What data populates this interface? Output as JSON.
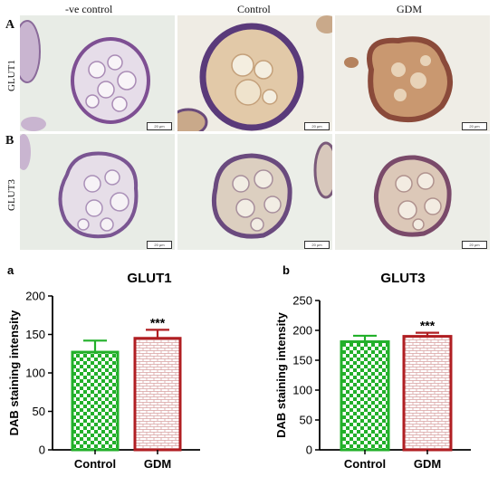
{
  "figure": {
    "column_labels": [
      "-ve control",
      "Control",
      "GDM"
    ],
    "rows": [
      {
        "letter": "A",
        "label": "GLUT1"
      },
      {
        "letter": "B",
        "label": "GLUT3"
      }
    ],
    "scale_bar_text": "20 μm"
  },
  "chart_data": [
    {
      "panel_letter": "a",
      "type": "bar",
      "title": "GLUT1",
      "ylabel": "DAB staining intensity",
      "xlabel": "",
      "categories": [
        "Control",
        "GDM"
      ],
      "values": [
        127,
        145
      ],
      "errors": [
        15,
        11
      ],
      "significance": [
        "",
        "***"
      ],
      "ylim": [
        0,
        200
      ],
      "yticks": [
        0,
        50,
        100,
        150,
        200
      ],
      "colors": [
        "#22b02a",
        "#b01e22"
      ],
      "patterns": [
        "checker",
        "brick"
      ],
      "grid": false
    },
    {
      "panel_letter": "b",
      "type": "bar",
      "title": "GLUT3",
      "ylabel": "DAB staining intensity",
      "xlabel": "",
      "categories": [
        "Control",
        "GDM"
      ],
      "values": [
        181,
        190
      ],
      "errors": [
        10,
        6
      ],
      "significance": [
        "",
        "***"
      ],
      "ylim": [
        0,
        250
      ],
      "yticks": [
        0,
        50,
        100,
        150,
        200,
        250
      ],
      "colors": [
        "#22b02a",
        "#b01e22"
      ],
      "patterns": [
        "checker",
        "brick"
      ],
      "grid": false
    }
  ]
}
